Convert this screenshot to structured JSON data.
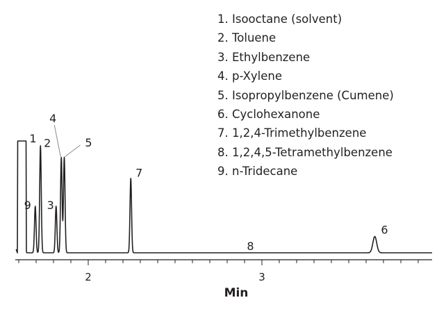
{
  "chart_data": {
    "type": "line",
    "title": "",
    "xlabel": "Min",
    "ylabel": "",
    "xlim": [
      1.58,
      3.98
    ],
    "ylim": [
      0,
      100
    ],
    "x_ticks": [
      {
        "value": 2,
        "label": "2"
      },
      {
        "value": 3,
        "label": "3"
      }
    ],
    "minor_tick_step": 0.1,
    "grid": false,
    "legend": {
      "placement": "top-right",
      "entries": [
        "1. Isooctane (solvent)",
        "2. Toluene",
        "3. Ethylbenzene",
        "4. p-Xylene",
        "5. Isopropylbenzene (Cumene)",
        "6. Cyclohexanone",
        "7. 1,2,4-Trimethylbenzene",
        "8. 1,2,4,5-Tetramethylbenzene",
        "9. n-Tridecane"
      ]
    },
    "series": [
      {
        "color": "#231f20",
        "baseline": 4,
        "peaks": [
          {
            "label": "1",
            "x": 1.62,
            "height": 100,
            "kind": "solvent"
          },
          {
            "label": "9",
            "x": 1.695,
            "height": 44
          },
          {
            "label": "2",
            "x": 1.725,
            "height": 96
          },
          {
            "label": "3",
            "x": 1.815,
            "height": 44
          },
          {
            "label": "4",
            "x": 1.845,
            "height": 86
          },
          {
            "label": "5",
            "x": 1.862,
            "height": 86
          },
          {
            "label": "7",
            "x": 2.245,
            "height": 68
          },
          {
            "label": "8",
            "x": 2.89,
            "height": 4
          },
          {
            "label": "6",
            "x": 3.65,
            "height": 18
          }
        ]
      }
    ]
  }
}
